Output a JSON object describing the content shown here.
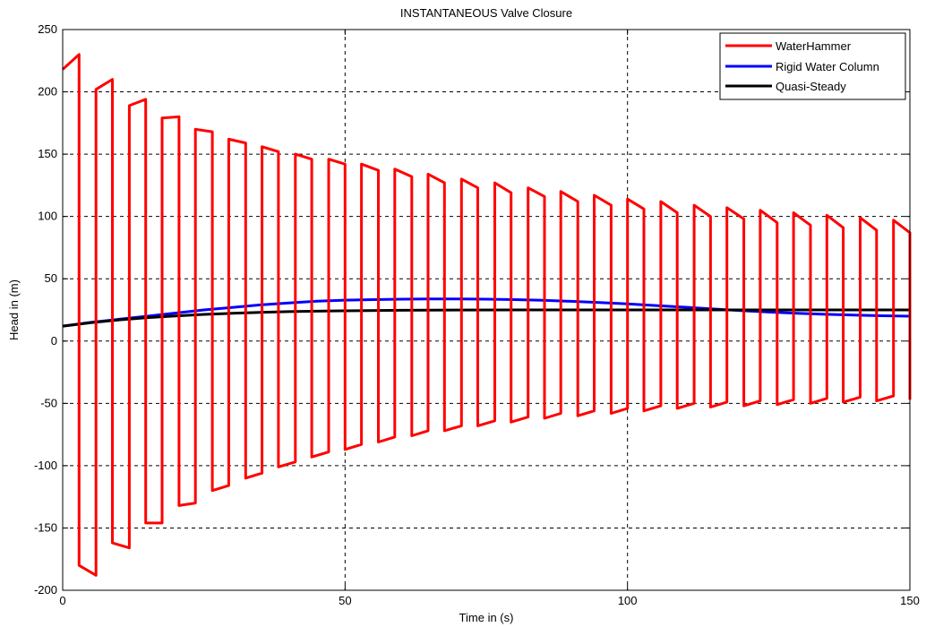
{
  "chart_data": {
    "type": "line",
    "title": "INSTANTANEOUS Valve Closure",
    "xlabel": "Time in (s)",
    "ylabel": "Head in (m)",
    "xlim": [
      0,
      150
    ],
    "ylim": [
      -200,
      250
    ],
    "xticks": [
      0,
      50,
      100,
      150
    ],
    "yticks": [
      -200,
      -150,
      -100,
      -50,
      0,
      50,
      100,
      150,
      200,
      250
    ],
    "grid": true,
    "legend_position": "top-right",
    "series": [
      {
        "name": "WaterHammer",
        "color": "#ff0000",
        "x": [
          0.0,
          2.9,
          2.9,
          5.9,
          5.9,
          8.8,
          8.8,
          11.8,
          11.8,
          14.7,
          14.7,
          17.6,
          17.6,
          20.6,
          20.6,
          23.5,
          23.5,
          26.5,
          26.5,
          29.4,
          29.4,
          32.4,
          32.4,
          35.3,
          35.3,
          38.2,
          38.2,
          41.2,
          41.2,
          44.1,
          44.1,
          47.1,
          47.1,
          50.0,
          50.0,
          52.9,
          52.9,
          55.9,
          55.9,
          58.8,
          58.8,
          61.8,
          61.8,
          64.7,
          64.7,
          67.6,
          67.6,
          70.6,
          70.6,
          73.5,
          73.5,
          76.5,
          76.5,
          79.4,
          79.4,
          82.4,
          82.4,
          85.3,
          85.3,
          88.2,
          88.2,
          91.2,
          91.2,
          94.1,
          94.1,
          97.1,
          97.1,
          100.0,
          100.0,
          102.9,
          102.9,
          105.9,
          105.9,
          108.8,
          108.8,
          111.8,
          111.8,
          114.7,
          114.7,
          117.6,
          117.6,
          120.6,
          120.6,
          123.5,
          123.5,
          126.5,
          126.5,
          129.4,
          129.4,
          132.4,
          132.4,
          135.3,
          135.3,
          138.2,
          138.2,
          141.2,
          141.2,
          144.1,
          144.1,
          147.1,
          147.1,
          150.0,
          150.0
        ],
        "values": [
          218.0,
          230.0,
          -180.0,
          -188.0,
          202.0,
          210.0,
          -162.0,
          -166.0,
          189.0,
          194.0,
          -146.0,
          -146.0,
          179.0,
          180.0,
          -132.0,
          -130.0,
          170.0,
          168.0,
          -120.0,
          -116.0,
          162.0,
          159.0,
          -110.0,
          -106.0,
          156.0,
          152.0,
          -101.0,
          -97.0,
          150.0,
          146.0,
          -93.0,
          -89.0,
          146.0,
          142.0,
          -87.0,
          -83.0,
          142.0,
          137.0,
          -81.0,
          -77.0,
          138.0,
          132.0,
          -76.0,
          -72.0,
          134.0,
          127.0,
          -72.0,
          -68.0,
          130.0,
          123.0,
          -68.0,
          -64.0,
          127.0,
          119.0,
          -65.0,
          -61.0,
          123.0,
          116.0,
          -62.0,
          -58.0,
          120.0,
          112.0,
          -60.0,
          -56.0,
          117.0,
          109.0,
          -58.0,
          -54.0,
          114.0,
          106.0,
          -56.0,
          -52.0,
          112.0,
          103.0,
          -54.0,
          -50.0,
          109.0,
          100.0,
          -53.0,
          -49.0,
          107.0,
          98.0,
          -52.0,
          -48.0,
          105.0,
          95.0,
          -51.0,
          -47.0,
          103.0,
          93.0,
          -50.0,
          -46.0,
          101.0,
          91.0,
          -49.0,
          -45.0,
          99.0,
          89.0,
          -48.0,
          -44.0,
          97.0,
          87.0,
          -47.0
        ]
      },
      {
        "name": "Rigid Water Column",
        "color": "#0000ff",
        "x": [
          0,
          5,
          10,
          15,
          20,
          25,
          30,
          35,
          40,
          45,
          50,
          55,
          60,
          65,
          70,
          75,
          80,
          85,
          90,
          95,
          100,
          105,
          110,
          115,
          120,
          125,
          130,
          135,
          140,
          145,
          150
        ],
        "values": [
          12.0,
          15.0,
          17.5,
          20.0,
          22.5,
          25.0,
          27.0,
          29.0,
          30.5,
          32.0,
          32.8,
          33.3,
          33.6,
          33.8,
          33.8,
          33.6,
          33.3,
          32.7,
          31.9,
          31.0,
          29.8,
          28.5,
          27.2,
          25.8,
          24.5,
          23.3,
          22.3,
          21.5,
          20.8,
          20.3,
          20.0
        ]
      },
      {
        "name": "Quasi-Steady",
        "color": "#000000",
        "x": [
          0,
          5,
          10,
          15,
          20,
          25,
          30,
          35,
          40,
          45,
          50,
          60,
          70,
          80,
          90,
          100,
          110,
          120,
          130,
          140,
          150
        ],
        "values": [
          12.0,
          14.8,
          17.0,
          18.8,
          20.2,
          21.4,
          22.3,
          23.0,
          23.6,
          24.0,
          24.3,
          24.7,
          24.9,
          25.0,
          25.0,
          25.0,
          25.0,
          25.0,
          25.0,
          25.0,
          25.0
        ]
      }
    ]
  }
}
